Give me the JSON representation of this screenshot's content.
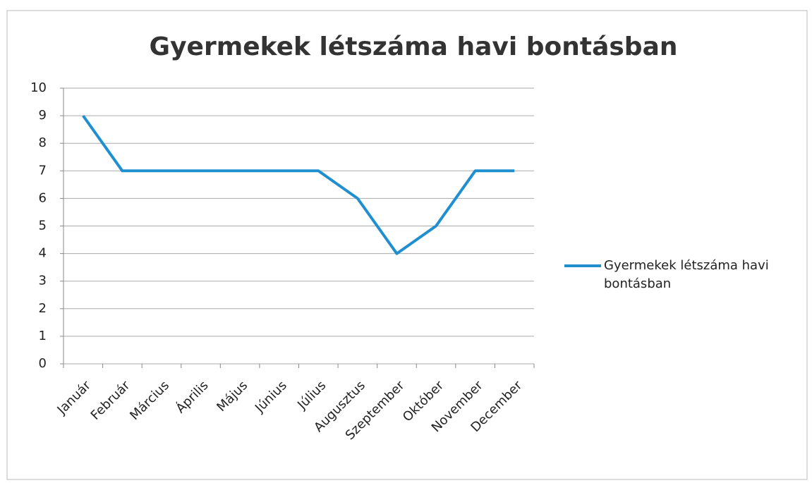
{
  "chart_data": {
    "type": "line",
    "title": "Gyermekek létszáma havi bontásban",
    "categories": [
      "Január",
      "Február",
      "Március",
      "Április",
      "Május",
      "Június",
      "Július",
      "Augusztus",
      "Szeptember",
      "Október",
      "November",
      "December"
    ],
    "series": [
      {
        "name": "Gyermekek létszáma havi bontásban",
        "color": "#1f8fcf",
        "values": [
          9,
          7,
          7,
          7,
          7,
          7,
          7,
          6,
          4,
          5,
          7,
          7
        ]
      }
    ],
    "ylim": [
      0,
      10
    ],
    "yticks": [
      0,
      1,
      2,
      3,
      4,
      5,
      6,
      7,
      8,
      9,
      10
    ],
    "grid": true,
    "legend": "right"
  }
}
